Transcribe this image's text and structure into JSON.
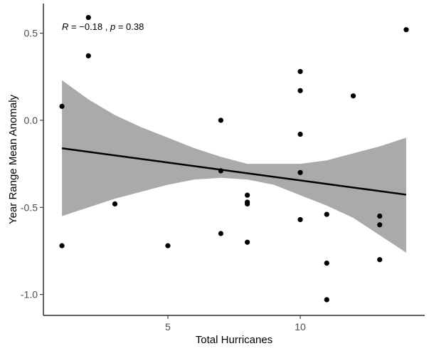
{
  "chart_data": {
    "type": "scatter",
    "title": "",
    "xlabel": "Total Hurricanes",
    "ylabel": "Year Range Mean Anomaly",
    "xlim": [
      0.3,
      14.7
    ],
    "ylim": [
      -1.12,
      0.67
    ],
    "xticks": [
      5,
      10
    ],
    "xtick_labels": [
      "5",
      "10"
    ],
    "yticks": [
      -1.0,
      -0.5,
      0.0,
      0.5
    ],
    "ytick_labels": [
      "-1.0",
      "-0.5",
      "0.0",
      "0.5"
    ],
    "grid": false,
    "legend": "none",
    "annotation": {
      "r_label": "R",
      "r_text": " = −0.18 , ",
      "p_label": "p",
      "p_text": " = 0.38",
      "x": 1.0,
      "y": 0.54
    },
    "points": {
      "x": [
        1,
        1,
        2,
        2,
        3,
        5,
        7,
        7,
        7,
        8,
        8,
        8,
        8,
        10,
        10,
        10,
        10,
        10,
        11,
        11,
        11,
        12,
        13,
        13,
        13,
        14
      ],
      "y": [
        0.08,
        -0.72,
        0.59,
        0.37,
        -0.48,
        -0.72,
        0.0,
        -0.29,
        -0.65,
        -0.43,
        -0.47,
        -0.48,
        -0.7,
        0.28,
        0.17,
        -0.08,
        -0.3,
        -0.57,
        -0.54,
        -0.82,
        -1.03,
        0.14,
        -0.55,
        -0.6,
        -0.8,
        0.52
      ]
    },
    "fit": {
      "method": "linear",
      "intercept": -0.14,
      "slope": -0.0205,
      "x_range": [
        1,
        14
      ],
      "color": "#000000"
    },
    "confidence_band": {
      "color": "#aaaaaa",
      "x": [
        1,
        2,
        3,
        4,
        5,
        6,
        7,
        8,
        9,
        10,
        11,
        12,
        13,
        14
      ],
      "lower": [
        -0.55,
        -0.5,
        -0.45,
        -0.41,
        -0.37,
        -0.34,
        -0.33,
        -0.34,
        -0.37,
        -0.43,
        -0.49,
        -0.56,
        -0.66,
        -0.76
      ],
      "upper": [
        0.23,
        0.12,
        0.03,
        -0.04,
        -0.1,
        -0.16,
        -0.21,
        -0.25,
        -0.25,
        -0.25,
        -0.23,
        -0.19,
        -0.15,
        -0.1
      ]
    },
    "point_color": "#000000"
  }
}
